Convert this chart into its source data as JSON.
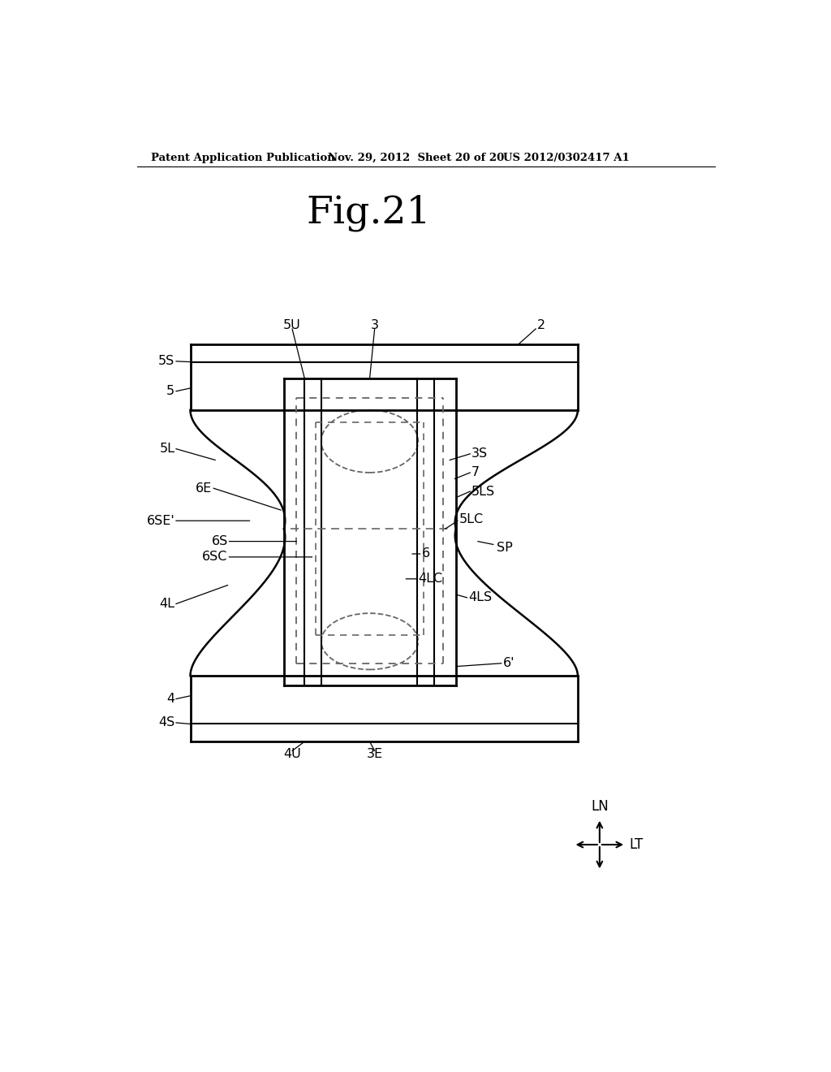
{
  "title": "Fig.21",
  "header_left": "Patent Application Publication",
  "header_mid": "Nov. 29, 2012  Sheet 20 of 20",
  "header_right": "US 2012/0302417 A1",
  "bg_color": "#ffffff",
  "line_color": "#000000",
  "dashed_color": "#666666"
}
